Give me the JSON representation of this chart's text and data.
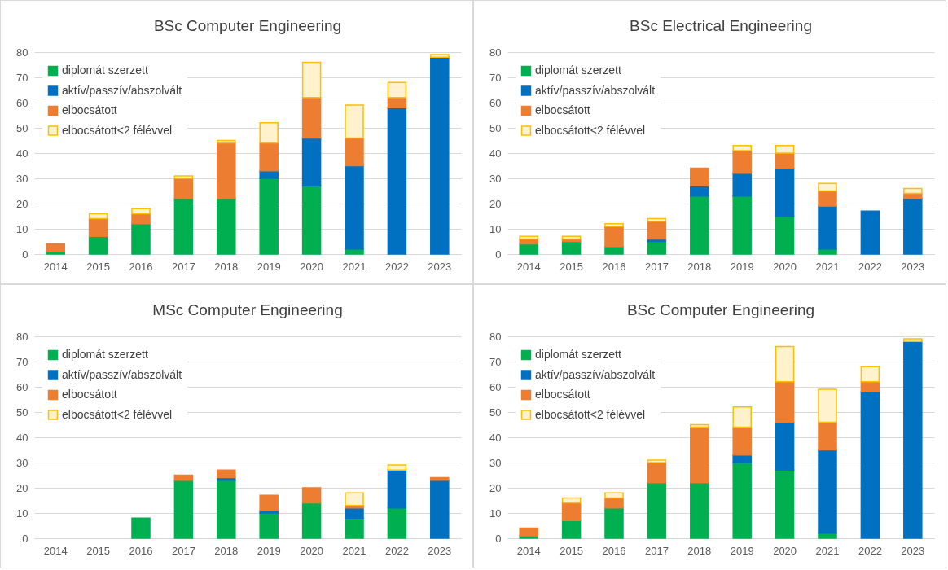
{
  "chart_data": [
    {
      "type": "bar",
      "title": "BSc Computer Engineering",
      "categories": [
        "2014",
        "2015",
        "2016",
        "2017",
        "2018",
        "2019",
        "2020",
        "2021",
        "2022",
        "2023"
      ],
      "stacked": true,
      "ylim": [
        0,
        80
      ],
      "yticks": [
        0,
        10,
        20,
        30,
        40,
        50,
        60,
        70,
        80
      ],
      "grid": "y",
      "legend": "top left",
      "series": [
        {
          "name": "diplomát szerzett",
          "color": "#00b050",
          "values": [
            1,
            7,
            12,
            22,
            22,
            30,
            27,
            2,
            0,
            0
          ]
        },
        {
          "name": "aktív/passzív/abszolvált",
          "color": "#0070c0",
          "values": [
            0,
            0,
            0,
            0,
            0,
            3,
            19,
            33,
            58,
            78
          ]
        },
        {
          "name": "elbocsátott",
          "color": "#ed7d31",
          "values": [
            3,
            7,
            4,
            8,
            22,
            11,
            16,
            11,
            4,
            0
          ]
        },
        {
          "name": "elbocsátott<2 félévvel",
          "color": "#fff2cc",
          "values": [
            0,
            2,
            2,
            1,
            1,
            8,
            14,
            13,
            6,
            1
          ]
        }
      ]
    },
    {
      "type": "bar",
      "title": "BSc Electrical Engineering",
      "categories": [
        "2014",
        "2015",
        "2016",
        "2017",
        "2018",
        "2019",
        "2020",
        "2021",
        "2022",
        "2023"
      ],
      "stacked": true,
      "ylim": [
        0,
        80
      ],
      "yticks": [
        0,
        10,
        20,
        30,
        40,
        50,
        60,
        70,
        80
      ],
      "grid": "y",
      "legend": "top left",
      "series": [
        {
          "name": "diplomát szerzett",
          "color": "#00b050",
          "values": [
            4,
            5,
            3,
            5,
            23,
            23,
            15,
            2,
            0,
            0
          ]
        },
        {
          "name": "aktív/passzív/abszolvált",
          "color": "#0070c0",
          "values": [
            0,
            0,
            0,
            1,
            4,
            9,
            19,
            17,
            17,
            22
          ]
        },
        {
          "name": "elbocsátott",
          "color": "#ed7d31",
          "values": [
            2,
            1,
            8,
            7,
            7,
            9,
            6,
            6,
            0,
            2
          ]
        },
        {
          "name": "elbocsátott<2 félévvel",
          "color": "#fff2cc",
          "values": [
            1,
            1,
            1,
            1,
            0,
            2,
            3,
            3,
            0,
            2
          ]
        }
      ]
    },
    {
      "type": "bar",
      "title": "MSc Computer Engineering",
      "categories": [
        "2014",
        "2015",
        "2016",
        "2017",
        "2018",
        "2019",
        "2020",
        "2021",
        "2022",
        "2023"
      ],
      "stacked": true,
      "ylim": [
        0,
        80
      ],
      "yticks": [
        0,
        10,
        20,
        30,
        40,
        50,
        60,
        70,
        80
      ],
      "grid": "y",
      "legend": "top left",
      "series": [
        {
          "name": "diplomát szerzett",
          "color": "#00b050",
          "values": [
            0,
            0,
            8,
            23,
            23,
            10,
            14,
            8,
            12,
            0
          ]
        },
        {
          "name": "aktív/passzív/abszolvált",
          "color": "#0070c0",
          "values": [
            0,
            0,
            0,
            0,
            1,
            1,
            0,
            4,
            15,
            23
          ]
        },
        {
          "name": "elbocsátott",
          "color": "#ed7d31",
          "values": [
            0,
            0,
            0,
            2,
            3,
            6,
            6,
            1,
            0,
            1
          ]
        },
        {
          "name": "elbocsátott<2 félévvel",
          "color": "#fff2cc",
          "values": [
            0,
            0,
            0,
            0,
            0,
            0,
            0,
            5,
            2,
            0
          ]
        }
      ]
    },
    {
      "type": "bar",
      "title": "BSc Computer Engineering",
      "categories": [
        "2014",
        "2015",
        "2016",
        "2017",
        "2018",
        "2019",
        "2020",
        "2021",
        "2022",
        "2023"
      ],
      "stacked": true,
      "ylim": [
        0,
        80
      ],
      "yticks": [
        0,
        10,
        20,
        30,
        40,
        50,
        60,
        70,
        80
      ],
      "grid": "y",
      "legend": "top left",
      "series": [
        {
          "name": "diplomát szerzett",
          "color": "#00b050",
          "values": [
            1,
            7,
            12,
            22,
            22,
            30,
            27,
            2,
            0,
            0
          ]
        },
        {
          "name": "aktív/passzív/abszolvált",
          "color": "#0070c0",
          "values": [
            0,
            0,
            0,
            0,
            0,
            3,
            19,
            33,
            58,
            78
          ]
        },
        {
          "name": "elbocsátott",
          "color": "#ed7d31",
          "values": [
            3,
            7,
            4,
            8,
            22,
            11,
            16,
            11,
            4,
            0
          ]
        },
        {
          "name": "elbocsátott<2 félévvel",
          "color": "#fff2cc",
          "values": [
            0,
            2,
            2,
            1,
            1,
            8,
            14,
            13,
            6,
            1
          ]
        }
      ]
    }
  ]
}
